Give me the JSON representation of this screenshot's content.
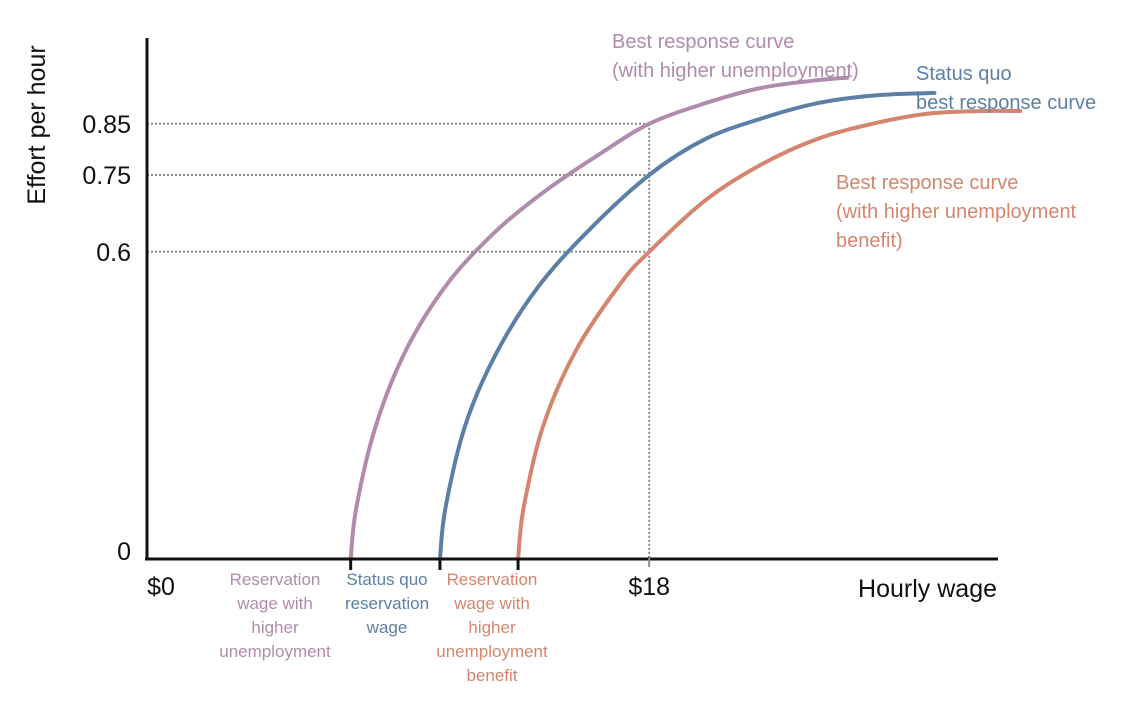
{
  "chart_data": {
    "type": "line",
    "title": "",
    "xlabel": "Hourly wage",
    "ylabel": "Effort per hour",
    "x_ticks": [
      "$0",
      "$18"
    ],
    "y_ticks": [
      "0",
      "0.6",
      "0.75",
      "0.85"
    ],
    "grid": false,
    "guide_lines": {
      "wage": 18,
      "efforts": [
        0.6,
        0.75,
        0.85
      ]
    },
    "colors": {
      "higher_unemployment": "#b08bab",
      "status_quo": "#5b7fa6",
      "higher_benefit": "#d4856e",
      "axis": "#111111",
      "guide": "#8a8a8a"
    },
    "series": [
      {
        "key": "higher_unemployment",
        "name": "Best response curve (with higher unemployment)",
        "label_lines": [
          "Best response curve",
          "(with higher unemployment)"
        ],
        "reservation_label_lines": [
          "Reservation",
          "wage with",
          "higher",
          "unemployment"
        ],
        "reservation_wage": 7.3,
        "x": [
          7.3,
          7.5,
          8.2,
          9.3,
          10.8,
          12.5,
          14.3,
          16.2,
          18.0,
          20.0,
          22.0,
          24.0,
          25.1
        ],
        "y": [
          0.0,
          0.1,
          0.26,
          0.41,
          0.54,
          0.64,
          0.72,
          0.79,
          0.85,
          0.89,
          0.92,
          0.935,
          0.94
        ]
      },
      {
        "key": "status_quo",
        "name": "Status quo best response curve",
        "label_lines": [
          "Status quo",
          "best response curve"
        ],
        "reservation_label_lines": [
          "Status quo",
          "reservation",
          "wage"
        ],
        "reservation_wage": 10.5,
        "x": [
          10.5,
          10.7,
          11.4,
          12.5,
          14.0,
          15.8,
          18.0,
          20.0,
          22.0,
          24.0,
          26.0,
          28.0,
          28.2
        ],
        "y": [
          0.0,
          0.1,
          0.26,
          0.4,
          0.53,
          0.64,
          0.75,
          0.82,
          0.86,
          0.89,
          0.905,
          0.91,
          0.91
        ]
      },
      {
        "key": "higher_benefit",
        "name": "Best response curve (with higher unemployment benefit)",
        "label_lines": [
          "Best response curve",
          "(with higher unemployment",
          "benefit)"
        ],
        "reservation_label_lines": [
          "Reservation",
          "wage with",
          "higher",
          "unemployment",
          "benefit"
        ],
        "reservation_wage": 13.3,
        "x": [
          13.3,
          13.5,
          14.2,
          15.4,
          17.0,
          18.0,
          20.0,
          22.0,
          24.0,
          26.0,
          28.0,
          30.0,
          31.3
        ],
        "y": [
          0.0,
          0.1,
          0.26,
          0.41,
          0.54,
          0.6,
          0.7,
          0.77,
          0.82,
          0.85,
          0.87,
          0.875,
          0.875
        ]
      }
    ]
  }
}
